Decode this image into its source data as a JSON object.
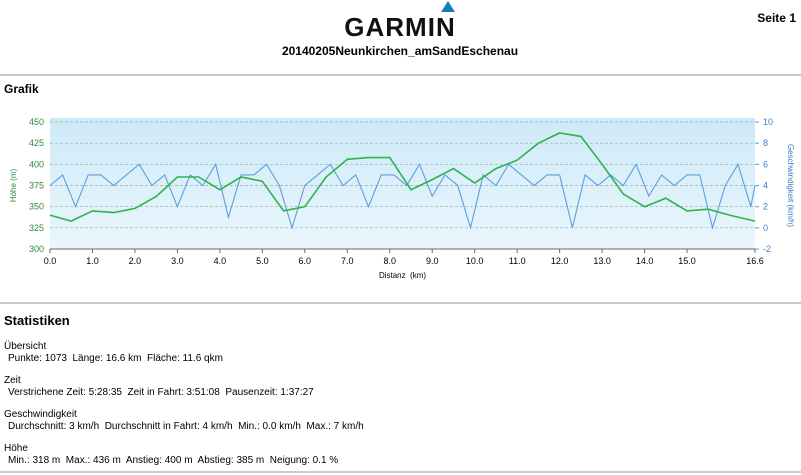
{
  "header": {
    "logo": "GARMIN",
    "page": "Seite 1",
    "title": "20140205Neunkirchen_amSandEschenau"
  },
  "sections": {
    "graph": "Grafik",
    "stats": "Statistiken"
  },
  "chart_data": {
    "type": "line",
    "x_label": "Distanz  (km)",
    "y_label": "Höhe (m)",
    "y2_label": "Geschwindigkeit (km/h)",
    "xlim": [
      0,
      16.6
    ],
    "xticks": [
      {
        "value": 0,
        "label": "0.0"
      },
      {
        "value": 1,
        "label": "1.0"
      },
      {
        "value": 2,
        "label": "2.0"
      },
      {
        "value": 3,
        "label": "3.0"
      },
      {
        "value": 4,
        "label": "4.0"
      },
      {
        "value": 5,
        "label": "5.0"
      },
      {
        "value": 6,
        "label": "6.0"
      },
      {
        "value": 7,
        "label": "7.0"
      },
      {
        "value": 8,
        "label": "8.0"
      },
      {
        "value": 9,
        "label": "9.0"
      },
      {
        "value": 10,
        "label": "10.0"
      },
      {
        "value": 11,
        "label": "11.0"
      },
      {
        "value": 12,
        "label": "12.0"
      },
      {
        "value": 13,
        "label": "13.0"
      },
      {
        "value": 14,
        "label": "14.0"
      },
      {
        "value": 15,
        "label": "15.0"
      },
      16.6
    ],
    "ylim": [
      300,
      450
    ],
    "yticks": [
      300,
      325,
      350,
      375,
      400,
      425,
      450
    ],
    "y2lim": [
      -2,
      10
    ],
    "y2ticks": [
      -2,
      0,
      2,
      4,
      6,
      8,
      10
    ],
    "grid": true,
    "series": [
      {
        "name": "Höhe",
        "color": "#2db34a",
        "axis": "y",
        "x": [
          0,
          0.5,
          1,
          1.5,
          2,
          2.5,
          3,
          3.5,
          4,
          4.5,
          5,
          5.5,
          6,
          6.5,
          7,
          7.5,
          8,
          8.5,
          9,
          9.5,
          10,
          10.5,
          11,
          11.5,
          12,
          12.5,
          13,
          13.5,
          14,
          14.5,
          15,
          15.5,
          16,
          16.6
        ],
        "values": [
          340,
          333,
          345,
          343,
          348,
          362,
          385,
          385,
          370,
          385,
          380,
          345,
          350,
          385,
          406,
          408,
          408,
          370,
          382,
          395,
          378,
          395,
          405,
          425,
          437,
          433,
          400,
          365,
          350,
          360,
          345,
          347,
          340,
          333
        ]
      },
      {
        "name": "Geschwindigkeit",
        "color": "#5a9fe0",
        "axis": "y2",
        "x": [
          0,
          0.3,
          0.6,
          0.9,
          1.2,
          1.5,
          1.8,
          2.1,
          2.4,
          2.7,
          3,
          3.3,
          3.6,
          3.9,
          4.2,
          4.5,
          4.8,
          5.1,
          5.4,
          5.7,
          6,
          6.3,
          6.6,
          6.9,
          7.2,
          7.5,
          7.8,
          8.1,
          8.4,
          8.7,
          9,
          9.3,
          9.6,
          9.9,
          10.2,
          10.5,
          10.8,
          11.1,
          11.4,
          11.7,
          12,
          12.3,
          12.6,
          12.9,
          13.2,
          13.5,
          13.8,
          14.1,
          14.4,
          14.7,
          15,
          15.3,
          15.6,
          15.9,
          16.2,
          16.5,
          16.6
        ],
        "values": [
          4,
          5,
          2,
          5,
          5,
          4,
          5,
          6,
          4,
          5,
          2,
          5,
          4,
          6,
          1,
          5,
          5,
          6,
          4,
          0,
          4,
          5,
          6,
          4,
          5,
          2,
          5,
          5,
          4,
          6,
          3,
          5,
          4,
          0,
          5,
          4,
          6,
          5,
          4,
          5,
          5,
          0,
          5,
          4,
          5,
          4,
          6,
          3,
          5,
          4,
          5,
          5,
          0,
          4,
          6,
          2,
          4
        ]
      }
    ]
  },
  "statistics": [
    {
      "heading": "Übersicht",
      "text": "Punkte: 1073  Länge: 16.6 km  Fläche: 11.6 qkm"
    },
    {
      "heading": "Zeit",
      "text": "Verstrichene Zeit: 5:28:35  Zeit in Fahrt: 3:51:08  Pausenzeit: 1:37:27"
    },
    {
      "heading": "Geschwindigkeit",
      "text": "Durchschnitt: 3 km/h  Durchschnitt in Fahrt: 4 km/h  Min.: 0.0 km/h  Max.: 7 km/h"
    },
    {
      "heading": "Höhe",
      "text": "Min.: 318 m  Max.: 436 m  Anstieg: 400 m  Abstieg: 385 m  Neigung: 0.1 %"
    }
  ]
}
